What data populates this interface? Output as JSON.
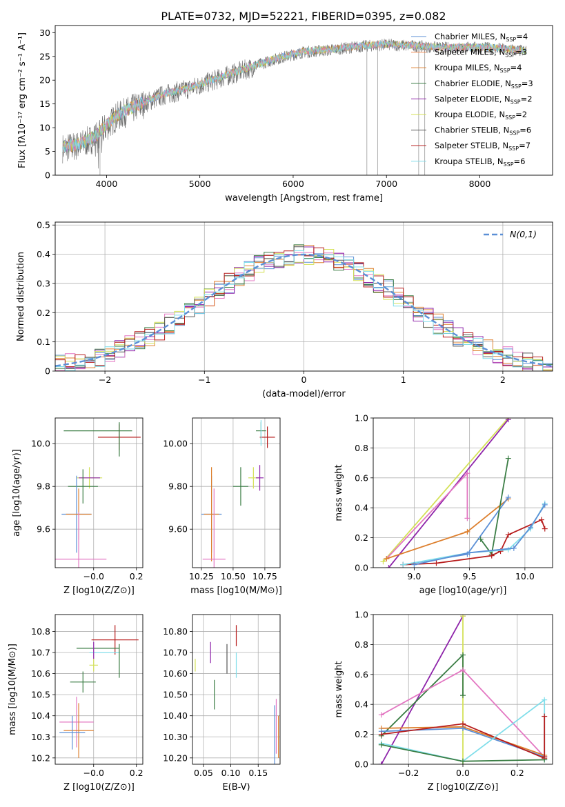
{
  "figure_title": "PLATE=0732, MJD=52221, FIBERID=0395, z=0.082",
  "colors": {
    "chabrier_miles": "#4878cf",
    "salpeter_miles": "#6acc65",
    "kroupa_miles": "#d65f5f",
    "chabrier_elodie": "#3a7d44",
    "salpeter_elodie": "#8e24aa",
    "kroupa_elodie": "#d4e157",
    "chabrier_stelib": "#555555",
    "salpeter_stelib": "#b71c1c",
    "kroupa_stelib": "#80deea",
    "pink": "#e377c2",
    "orange": "#dd7f2d",
    "steel": "#5b8fd6",
    "green": "#5a8a5f"
  },
  "chart_data": [
    {
      "id": "spectrum",
      "type": "line",
      "title": "PLATE=0732, MJD=52221, FIBERID=0395, z=0.082",
      "xlabel": "wavelength [Angstrom, rest frame]",
      "ylabel": "Flux [fλ10⁻¹⁷ erg cm⁻² s⁻¹ A⁻¹]",
      "xlim": [
        3450,
        8780
      ],
      "ylim": [
        0,
        31.5
      ],
      "xticks": [
        4000,
        5000,
        6000,
        7000,
        8000
      ],
      "yticks": [
        0,
        5,
        10,
        15,
        20,
        25,
        30
      ],
      "legend": [
        {
          "label": "Chabrier MILES, N",
          "sub": "SSP",
          "suffix": "=4",
          "color": "#5b8fd6"
        },
        {
          "label": "Salpeter MILES, N",
          "sub": "SSP",
          "suffix": "=3",
          "color": "#ee854a"
        },
        {
          "label": "Kroupa MILES, N",
          "sub": "SSP",
          "suffix": "=4",
          "color": "#dd7f2d"
        },
        {
          "label": "Chabrier ELODIE, N",
          "sub": "SSP",
          "suffix": "=3",
          "color": "#3a7d44"
        },
        {
          "label": "Salpeter ELODIE, N",
          "sub": "SSP",
          "suffix": "=2",
          "color": "#8e24aa"
        },
        {
          "label": "Kroupa ELODIE, N",
          "sub": "SSP",
          "suffix": "=2",
          "color": "#d4e157"
        },
        {
          "label": "Chabrier STELIB, N",
          "sub": "SSP",
          "suffix": "=6",
          "color": "#555555"
        },
        {
          "label": "Salpeter STELIB, N",
          "sub": "SSP",
          "suffix": "=7",
          "color": "#b71c1c"
        },
        {
          "label": "Kroupa STELIB, N",
          "sub": "SSP",
          "suffix": "=6",
          "color": "#80deea"
        }
      ],
      "continuum": [
        [
          3530,
          6.0
        ],
        [
          3700,
          6.5
        ],
        [
          3900,
          8.5
        ],
        [
          4100,
          12.5
        ],
        [
          4300,
          14.5
        ],
        [
          4600,
          17.0
        ],
        [
          4900,
          18.5
        ],
        [
          5200,
          20.5
        ],
        [
          5500,
          22.5
        ],
        [
          5800,
          24.5
        ],
        [
          6100,
          26.0
        ],
        [
          6400,
          26.5
        ],
        [
          6700,
          27.2
        ],
        [
          7000,
          27.6
        ],
        [
          7300,
          27.3
        ],
        [
          7600,
          26.9
        ],
        [
          8000,
          27.0
        ],
        [
          8300,
          26.6
        ],
        [
          8500,
          26.2
        ]
      ],
      "dropouts": [
        [
          6790,
          0
        ],
        [
          6905,
          0
        ],
        [
          7345,
          0
        ],
        [
          7410,
          0
        ],
        [
          3930,
          0
        ]
      ]
    },
    {
      "id": "residual_hist",
      "type": "histogram",
      "xlabel": "(data-model)/error",
      "ylabel": "Normed distribution",
      "xlim": [
        -2.5,
        2.5
      ],
      "ylim": [
        0,
        0.51
      ],
      "xticks": [
        -2,
        -1,
        0,
        1,
        2
      ],
      "yticks": [
        0.0,
        0.1,
        0.2,
        0.3,
        0.4,
        0.5
      ],
      "legend": [
        {
          "label": "N(0,1)",
          "color": "#5b8fd6"
        }
      ],
      "bin_width": 0.1
    },
    {
      "id": "age_vs_Z",
      "type": "scatter",
      "xlabel": "Z [log10(Z/Z⊙)]",
      "ylabel": "age  [log10(age/yr)]",
      "xlim": [
        -0.18,
        0.23
      ],
      "ylim": [
        9.42,
        10.12
      ],
      "xticks": [
        -0.0,
        0.2
      ],
      "yticks": [
        9.6,
        9.8,
        10.0
      ],
      "points": [
        {
          "x": 0.02,
          "y": 10.06,
          "xerr": 0.16,
          "yerr": 0.0,
          "color": "#3a7d44"
        },
        {
          "x": 0.12,
          "y": 10.03,
          "xerr": 0.1,
          "yerr": 0.06,
          "color": "#b71c1c"
        },
        {
          "x": 0.12,
          "y": 10.02,
          "xerr": 0.0,
          "yerr": 0.08,
          "color": "#3a7d44"
        },
        {
          "x": -0.02,
          "y": 9.84,
          "xerr": 0.06,
          "yerr": 0.05,
          "color": "#d4e157"
        },
        {
          "x": -0.02,
          "y": 9.84,
          "xerr": 0.05,
          "yerr": 0.0,
          "color": "#8e24aa"
        },
        {
          "x": -0.05,
          "y": 9.8,
          "xerr": 0.07,
          "yerr": 0.08,
          "color": "#3a7d44"
        },
        {
          "x": -0.08,
          "y": 9.67,
          "xerr": 0.07,
          "yerr": 0.18,
          "color": "#5b8fd6"
        },
        {
          "x": -0.07,
          "y": 9.67,
          "xerr": 0.06,
          "yerr": 0.12,
          "color": "#dd7f2d"
        },
        {
          "x": -0.07,
          "y": 9.46,
          "xerr": 0.13,
          "yerr": 0.22,
          "color": "#e377c2"
        }
      ]
    },
    {
      "id": "age_vs_mass",
      "type": "scatter",
      "xlabel": "mass [log10(M/M⊙)]",
      "ylabel": "",
      "xlim": [
        10.18,
        10.87
      ],
      "ylim": [
        9.42,
        10.12
      ],
      "xticks": [
        10.25,
        10.5,
        10.75
      ],
      "yticks": [
        9.6,
        9.8,
        10.0
      ],
      "points": [
        {
          "x": 10.72,
          "y": 10.06,
          "xerr": 0.04,
          "yerr": 0.04,
          "color": "#3a7d44"
        },
        {
          "x": 10.77,
          "y": 10.03,
          "xerr": 0.06,
          "yerr": 0.05,
          "color": "#b71c1c"
        },
        {
          "x": 10.72,
          "y": 10.05,
          "xerr": 0.0,
          "yerr": 0.06,
          "color": "#80deea"
        },
        {
          "x": 10.66,
          "y": 9.84,
          "xerr": 0.04,
          "yerr": 0.05,
          "color": "#d4e157"
        },
        {
          "x": 10.71,
          "y": 9.84,
          "xerr": 0.03,
          "yerr": 0.06,
          "color": "#8e24aa"
        },
        {
          "x": 10.56,
          "y": 9.8,
          "xerr": 0.06,
          "yerr": 0.09,
          "color": "#3a7d44"
        },
        {
          "x": 10.33,
          "y": 9.67,
          "xerr": 0.08,
          "yerr": 0.18,
          "color": "#5b8fd6"
        },
        {
          "x": 10.33,
          "y": 9.67,
          "xerr": 0.06,
          "yerr": 0.22,
          "color": "#dd7f2d"
        },
        {
          "x": 10.35,
          "y": 9.46,
          "xerr": 0.09,
          "yerr": 0.33,
          "color": "#e377c2"
        }
      ]
    },
    {
      "id": "weight_vs_age",
      "type": "line",
      "xlabel": "age  [log10(age/yr)]",
      "ylabel": "mass weight",
      "xlim": [
        8.63,
        10.25
      ],
      "ylim": [
        0,
        1.0
      ],
      "xticks": [
        9.0,
        9.5,
        10.0
      ],
      "yticks": [
        0.0,
        0.2,
        0.4,
        0.6,
        0.8,
        1.0
      ],
      "series": [
        {
          "color": "#d4e157",
          "points": [
            [
              8.72,
              0.04
            ],
            [
              9.85,
              1.0
            ]
          ]
        },
        {
          "color": "#8e24aa",
          "points": [
            [
              8.77,
              0.0
            ],
            [
              9.85,
              0.99
            ]
          ]
        },
        {
          "color": "#e377c2",
          "points": [
            [
              8.75,
              0.06
            ],
            [
              9.48,
              0.63
            ],
            [
              9.48,
              0.33
            ]
          ]
        },
        {
          "color": "#dd7f2d",
          "points": [
            [
              8.75,
              0.06
            ],
            [
              9.48,
              0.24
            ],
            [
              9.85,
              0.46
            ]
          ]
        },
        {
          "color": "#5b8fd6",
          "points": [
            [
              8.9,
              0.02
            ],
            [
              9.48,
              0.09
            ],
            [
              9.85,
              0.47
            ]
          ]
        },
        {
          "color": "#3a7d44",
          "points": [
            [
              9.6,
              0.19
            ],
            [
              9.7,
              0.09
            ],
            [
              9.85,
              0.73
            ]
          ]
        },
        {
          "color": "#b71c1c",
          "points": [
            [
              8.9,
              0.02
            ],
            [
              9.2,
              0.03
            ],
            [
              9.7,
              0.08
            ],
            [
              9.78,
              0.11
            ],
            [
              9.85,
              0.22
            ],
            [
              10.15,
              0.32
            ],
            [
              10.18,
              0.26
            ]
          ]
        },
        {
          "color": "#80deea",
          "points": [
            [
              8.9,
              0.02
            ],
            [
              9.5,
              0.1
            ],
            [
              9.85,
              0.12
            ],
            [
              10.05,
              0.26
            ],
            [
              10.18,
              0.43
            ]
          ]
        },
        {
          "color": "#5b8fd6",
          "points": [
            [
              9.0,
              0.02
            ],
            [
              9.5,
              0.1
            ],
            [
              9.9,
              0.13
            ],
            [
              10.05,
              0.27
            ],
            [
              10.18,
              0.42
            ]
          ]
        }
      ]
    },
    {
      "id": "mass_vs_Z",
      "type": "scatter",
      "xlabel": "Z [log10(Z/Z⊙)]",
      "ylabel": "mass [log10(M/M⊙)]",
      "xlim": [
        -0.18,
        0.23
      ],
      "ylim": [
        10.17,
        10.88
      ],
      "xticks": [
        -0.0,
        0.2
      ],
      "yticks": [
        10.2,
        10.3,
        10.4,
        10.5,
        10.6,
        10.7,
        10.8
      ],
      "points": [
        {
          "x": 0.1,
          "y": 10.76,
          "xerr": 0.11,
          "yerr": 0.07,
          "color": "#b71c1c"
        },
        {
          "x": 0.02,
          "y": 10.72,
          "xerr": 0.1,
          "yerr": 0.0,
          "color": "#3a7d44"
        },
        {
          "x": 0.05,
          "y": 10.7,
          "xerr": 0.07,
          "yerr": 0.0,
          "color": "#80deea"
        },
        {
          "x": 0.12,
          "y": 10.66,
          "xerr": 0.0,
          "yerr": 0.08,
          "color": "#3a7d44"
        },
        {
          "x": 0.0,
          "y": 10.64,
          "xerr": 0.02,
          "yerr": 0.03,
          "color": "#d4e157"
        },
        {
          "x": 0.0,
          "y": 10.71,
          "xerr": 0.0,
          "yerr": 0.04,
          "color": "#8e24aa"
        },
        {
          "x": -0.05,
          "y": 10.56,
          "xerr": 0.06,
          "yerr": 0.05,
          "color": "#3a7d44"
        },
        {
          "x": -0.08,
          "y": 10.37,
          "xerr": 0.08,
          "yerr": 0.12,
          "color": "#e377c2"
        },
        {
          "x": -0.07,
          "y": 10.33,
          "xerr": 0.07,
          "yerr": 0.13,
          "color": "#dd7f2d"
        },
        {
          "x": -0.1,
          "y": 10.32,
          "xerr": 0.06,
          "yerr": 0.08,
          "color": "#5b8fd6"
        }
      ]
    },
    {
      "id": "mass_vs_ebv",
      "type": "scatter",
      "xlabel": "E(B-V)",
      "ylabel": "",
      "xlim": [
        0.03,
        0.19
      ],
      "ylim": [
        10.17,
        10.88
      ],
      "xticks": [
        0.05,
        0.1,
        0.15
      ],
      "yticks": [
        10.2,
        10.3,
        10.4,
        10.5,
        10.6,
        10.7,
        10.8
      ],
      "points": [
        {
          "x": 0.035,
          "y": 10.64,
          "yerr": 0.03,
          "color": "#d4e157"
        },
        {
          "x": 0.063,
          "y": 10.7,
          "yerr": 0.05,
          "color": "#8e24aa"
        },
        {
          "x": 0.07,
          "y": 10.5,
          "yerr": 0.07,
          "color": "#3a7d44"
        },
        {
          "x": 0.093,
          "y": 10.67,
          "yerr": 0.07,
          "color": "#555555"
        },
        {
          "x": 0.11,
          "y": 10.78,
          "yerr": 0.05,
          "color": "#b71c1c"
        },
        {
          "x": 0.11,
          "y": 10.64,
          "yerr": 0.06,
          "color": "#80deea"
        },
        {
          "x": 0.18,
          "y": 10.3,
          "yerr": 0.15,
          "color": "#5b8fd6"
        },
        {
          "x": 0.183,
          "y": 10.35,
          "yerr": 0.13,
          "color": "#e377c2"
        },
        {
          "x": 0.187,
          "y": 10.3,
          "yerr": 0.1,
          "color": "#dd7f2d"
        }
      ]
    },
    {
      "id": "weight_vs_Z",
      "type": "line",
      "xlabel": "Z [log10(Z/Z⊙)]",
      "ylabel": "mass weight",
      "xlim": [
        -0.33,
        0.33
      ],
      "ylim": [
        0,
        1.0
      ],
      "xticks": [
        -0.2,
        0.0,
        0.2
      ],
      "yticks": [
        0.0,
        0.2,
        0.4,
        0.6,
        0.8,
        1.0
      ],
      "series": [
        {
          "color": "#8e24aa",
          "points": [
            [
              -0.3,
              0.0
            ],
            [
              0.0,
              0.99
            ]
          ]
        },
        {
          "color": "#d4e157",
          "points": [
            [
              0.0,
              0.99
            ],
            [
              0.0,
              0.0
            ]
          ]
        },
        {
          "color": "#3a7d44",
          "points": [
            [
              -0.3,
              0.19
            ],
            [
              0.0,
              0.73
            ],
            [
              0.0,
              0.46
            ]
          ]
        },
        {
          "color": "#e377c2",
          "points": [
            [
              -0.3,
              0.33
            ],
            [
              0.0,
              0.63
            ],
            [
              0.3,
              0.05
            ]
          ]
        },
        {
          "color": "#dd7f2d",
          "points": [
            [
              -0.3,
              0.24
            ],
            [
              0.0,
              0.25
            ],
            [
              0.3,
              0.06
            ]
          ]
        },
        {
          "color": "#5b8fd6",
          "points": [
            [
              -0.3,
              0.22
            ],
            [
              0.0,
              0.24
            ],
            [
              0.3,
              0.05
            ]
          ]
        },
        {
          "color": "#b71c1c",
          "points": [
            [
              -0.3,
              0.2
            ],
            [
              0.0,
              0.27
            ],
            [
              0.3,
              0.04
            ]
          ]
        },
        {
          "color": "#80deea",
          "points": [
            [
              -0.3,
              0.14
            ],
            [
              0.0,
              0.02
            ],
            [
              0.3,
              0.43
            ],
            [
              0.3,
              0.03
            ]
          ]
        },
        {
          "color": "#3a7d44",
          "points": [
            [
              -0.3,
              0.13
            ],
            [
              0.0,
              0.02
            ],
            [
              0.3,
              0.03
            ]
          ]
        },
        {
          "color": "#b71c1c",
          "points": [
            [
              0.3,
              0.32
            ],
            [
              0.3,
              0.05
            ]
          ]
        }
      ]
    }
  ]
}
